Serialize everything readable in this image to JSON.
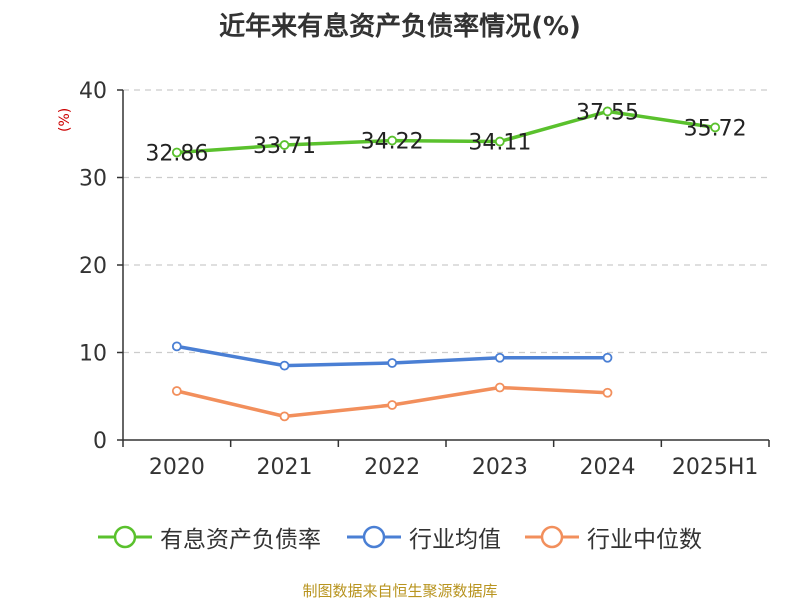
{
  "page": {
    "title": "近年来有息资产负债率情况(%)",
    "source": "制图数据来自恒生聚源数据库"
  },
  "chart_data": {
    "type": "line",
    "title": "近年来有息资产负债率情况(%)",
    "ylabel": "(%)",
    "xlabel": "",
    "categories": [
      "2020",
      "2021",
      "2022",
      "2023",
      "2024",
      "2025H1"
    ],
    "ylim": [
      0,
      40
    ],
    "yticks": [
      0,
      10,
      20,
      30,
      40
    ],
    "grid": true,
    "legend_position": "bottom",
    "series": [
      {
        "name": "有息资产负债率",
        "color": "#5ac12d",
        "values": [
          32.86,
          33.71,
          34.22,
          34.11,
          37.55,
          35.72
        ],
        "labels": [
          "32.86",
          "33.71",
          "34.22",
          "34.11",
          "37.55",
          "35.72"
        ]
      },
      {
        "name": "行业均值",
        "color": "#4a7fd4",
        "values": [
          10.7,
          8.5,
          8.8,
          9.4,
          9.4,
          null
        ]
      },
      {
        "name": "行业中位数",
        "color": "#f28f5c",
        "values": [
          5.6,
          2.7,
          4.0,
          6.0,
          5.4,
          null
        ]
      }
    ]
  }
}
